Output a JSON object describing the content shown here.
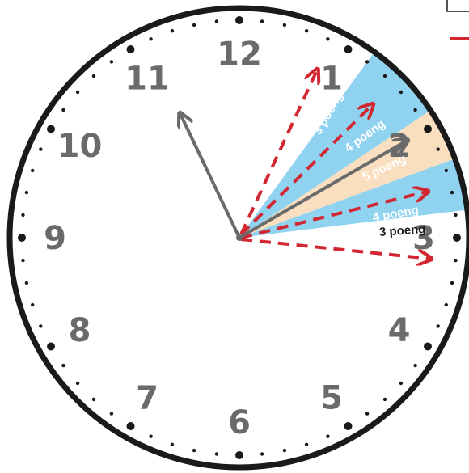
{
  "clock": {
    "numerals": [
      "12",
      "1",
      "2",
      "3",
      "4",
      "5",
      "6",
      "7",
      "8",
      "9",
      "10",
      "11"
    ],
    "hour_hand_points_to_hour": 2,
    "minute_hand_points_to_minute": 54
  },
  "scoring_zones": [
    {
      "label": "3 poeng",
      "color": "#ffffff",
      "text_color": "light"
    },
    {
      "label": "4 poeng",
      "color": "#8fd3f0",
      "text_color": "light"
    },
    {
      "label": "5 poeng",
      "color": "#f9dfbf",
      "text_color": "light"
    },
    {
      "label": "4 poeng",
      "color": "#8fd3f0",
      "text_color": "light"
    },
    {
      "label": "3 poeng",
      "color": "#ffffff",
      "text_color": "dark"
    }
  ],
  "guess_arrows_color": "#d22630",
  "hand_color": "#6a6a6a",
  "rim_color": "#1a1a1a"
}
